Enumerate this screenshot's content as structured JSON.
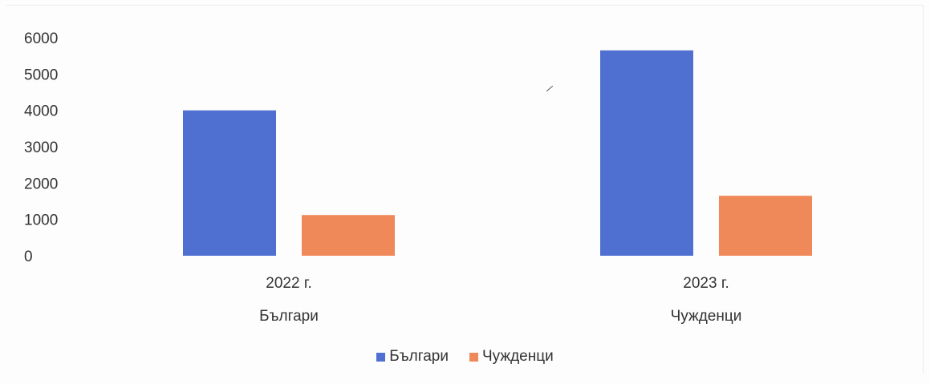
{
  "chart_data": {
    "type": "bar",
    "categories": [
      "2022 г.",
      "2023 г."
    ],
    "category_sublabels": [
      "Българи",
      "Чужденци"
    ],
    "series": [
      {
        "name": "Българи",
        "values": [
          4000,
          5650
        ],
        "color": "#4f6fd1"
      },
      {
        "name": "Чужденци",
        "values": [
          1120,
          1650
        ],
        "color": "#f0895a"
      }
    ],
    "ylim": [
      0,
      6000
    ],
    "yticks": [
      "0",
      "1000",
      "2000",
      "3000",
      "4000",
      "5000",
      "6000"
    ],
    "grid": false,
    "legend_position": "bottom"
  }
}
